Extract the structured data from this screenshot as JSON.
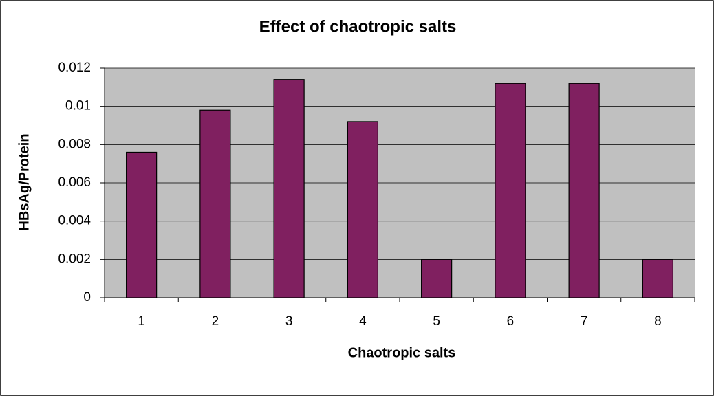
{
  "chart_data": {
    "type": "bar",
    "title": "Effect of chaotropic salts",
    "x_label": "Chaotropic salts",
    "y_label": "HBsAg/Protein",
    "categories": [
      "1",
      "2",
      "3",
      "4",
      "5",
      "6",
      "7",
      "8"
    ],
    "values": [
      0.0076,
      0.0098,
      0.0114,
      0.0092,
      0.002,
      0.0112,
      0.0112,
      0.002
    ],
    "color": "#802060",
    "ylim": [
      0,
      0.012
    ],
    "yticks": [
      0,
      0.002,
      0.004,
      0.006,
      0.008,
      0.01,
      0.012
    ],
    "grid": true
  }
}
